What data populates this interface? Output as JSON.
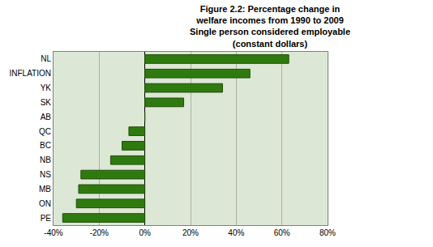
{
  "chart_data": {
    "type": "bar",
    "orientation": "horizontal",
    "title": "Figure 2.2: Percentage change in\nwelfare incomes from 1990 to 2009\nSingle person considered employable\n(constant dollars)",
    "categories": [
      "NL",
      "INFLATION",
      "YK",
      "SK",
      "AB",
      "QC",
      "BC",
      "NB",
      "NS",
      "MB",
      "ON",
      "PE"
    ],
    "values": [
      63,
      46,
      34,
      17,
      0,
      -7,
      -10,
      -15,
      -28,
      -29,
      -30,
      -36
    ],
    "color": "#2f7a0f",
    "xlim": [
      -40,
      80
    ],
    "xticks": [
      {
        "value": -40,
        "label": "-40%"
      },
      {
        "value": -20,
        "label": "-20%"
      },
      {
        "value": 0,
        "label": "0%"
      },
      {
        "value": 20,
        "label": "20%"
      },
      {
        "value": 40,
        "label": "40%"
      },
      {
        "value": 60,
        "label": "60%"
      },
      {
        "value": 80,
        "label": "80%"
      }
    ],
    "grid": true
  }
}
